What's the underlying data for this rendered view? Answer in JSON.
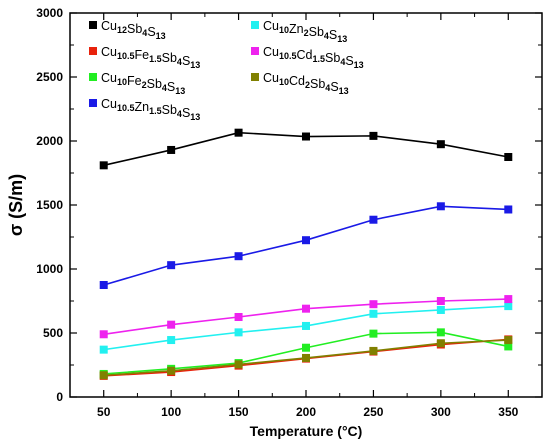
{
  "chart_data": {
    "type": "line",
    "title": "",
    "xlabel": "Temperature (°C)",
    "ylabel": "σ (S/m)",
    "x": [
      50,
      100,
      150,
      200,
      250,
      300,
      350
    ],
    "xlim": [
      25,
      375
    ],
    "ylim": [
      0,
      3000
    ],
    "xticks": [
      50,
      100,
      150,
      200,
      250,
      300,
      350
    ],
    "yticks": [
      0,
      500,
      1000,
      1500,
      2000,
      2500,
      3000
    ],
    "legend_position": "top-left",
    "grid": false,
    "series": [
      {
        "name": "Cu12Sb4S13",
        "label_parts": [
          [
            "Cu",
            ""
          ],
          [
            "12",
            "sub"
          ],
          [
            "Sb",
            ""
          ],
          [
            "4",
            "sub"
          ],
          [
            "S",
            ""
          ],
          [
            "13",
            "sub"
          ]
        ],
        "color": "#000000",
        "values": [
          1810,
          1930,
          2065,
          2035,
          2040,
          1975,
          1875
        ]
      },
      {
        "name": "Cu10.5Fe1.5Sb4S13",
        "label_parts": [
          [
            "Cu",
            ""
          ],
          [
            "10.5",
            "sub"
          ],
          [
            "Fe",
            ""
          ],
          [
            "1.5",
            "sub"
          ],
          [
            "Sb",
            ""
          ],
          [
            "4",
            "sub"
          ],
          [
            "S",
            ""
          ],
          [
            "13",
            "sub"
          ]
        ],
        "color": "#e8220c",
        "values": [
          165,
          195,
          245,
          300,
          355,
          410,
          450
        ]
      },
      {
        "name": "Cu10Fe2Sb4S13",
        "label_parts": [
          [
            "Cu",
            ""
          ],
          [
            "10",
            "sub"
          ],
          [
            "Fe",
            ""
          ],
          [
            "2",
            "sub"
          ],
          [
            "Sb",
            ""
          ],
          [
            "4",
            "sub"
          ],
          [
            "S",
            ""
          ],
          [
            "13",
            "sub"
          ]
        ],
        "color": "#22ee22",
        "values": [
          180,
          220,
          265,
          385,
          495,
          505,
          395
        ]
      },
      {
        "name": "Cu10.5Zn1.5Sb4S13",
        "label_parts": [
          [
            "Cu",
            ""
          ],
          [
            "10.5",
            "sub"
          ],
          [
            "Zn",
            ""
          ],
          [
            "1.5",
            "sub"
          ],
          [
            "Sb",
            ""
          ],
          [
            "4",
            "sub"
          ],
          [
            "S",
            ""
          ],
          [
            "13",
            "sub"
          ]
        ],
        "color": "#1a1ae6",
        "values": [
          875,
          1030,
          1100,
          1225,
          1385,
          1490,
          1465
        ]
      },
      {
        "name": "Cu10Zn2Sb4S13",
        "label_parts": [
          [
            "Cu",
            ""
          ],
          [
            "10",
            "sub"
          ],
          [
            "Zn",
            ""
          ],
          [
            "2",
            "sub"
          ],
          [
            "Sb",
            ""
          ],
          [
            "4",
            "sub"
          ],
          [
            "S",
            ""
          ],
          [
            "13",
            "sub"
          ]
        ],
        "color": "#22f0f0",
        "values": [
          370,
          445,
          505,
          555,
          650,
          680,
          710
        ]
      },
      {
        "name": "Cu10.5Cd1.5Sb4S13",
        "label_parts": [
          [
            "Cu",
            ""
          ],
          [
            "10.5",
            "sub"
          ],
          [
            "Cd",
            ""
          ],
          [
            "1.5",
            "sub"
          ],
          [
            "Sb",
            ""
          ],
          [
            "4",
            "sub"
          ],
          [
            "S",
            ""
          ],
          [
            "13",
            "sub"
          ]
        ],
        "color": "#ee22ee",
        "values": [
          490,
          565,
          625,
          690,
          725,
          750,
          765
        ]
      },
      {
        "name": "Cu10Cd2Sb4S13",
        "label_parts": [
          [
            "Cu",
            ""
          ],
          [
            "10",
            "sub"
          ],
          [
            "Cd",
            ""
          ],
          [
            "2",
            "sub"
          ],
          [
            "Sb",
            ""
          ],
          [
            "4",
            "sub"
          ],
          [
            "S",
            ""
          ],
          [
            "13",
            "sub"
          ]
        ],
        "color": "#808000",
        "values": [
          170,
          205,
          255,
          305,
          360,
          420,
          445
        ]
      }
    ]
  }
}
